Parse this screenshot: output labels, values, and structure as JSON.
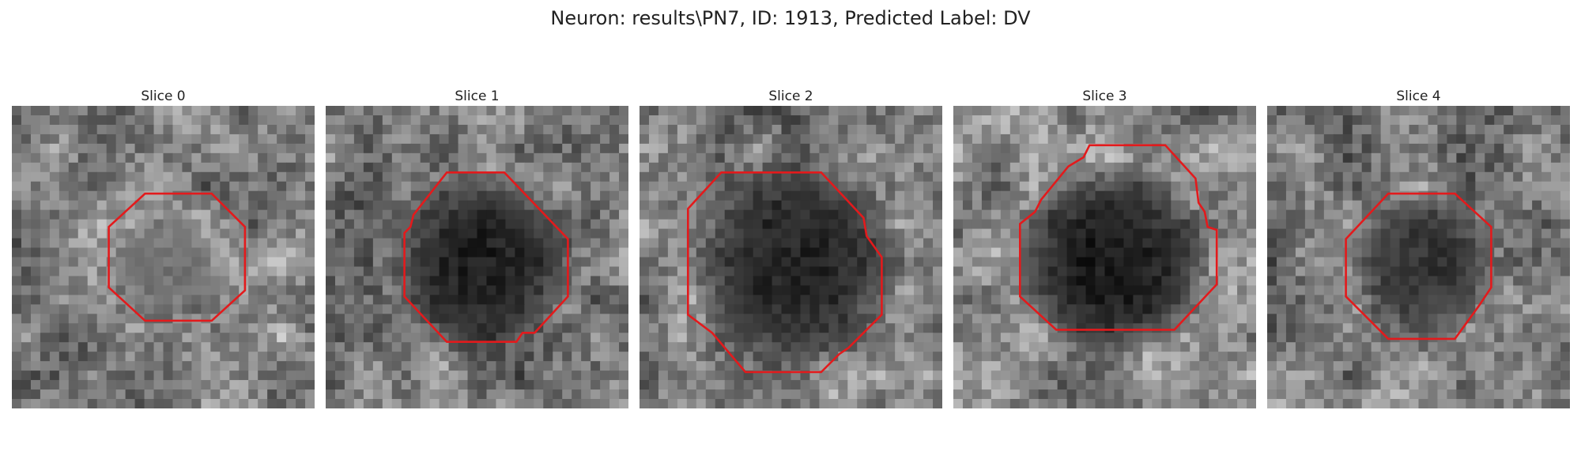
{
  "figure": {
    "title": "Neuron: results\\PN7, ID: 1913, Predicted Label: DV",
    "outline_color": "#e31a1c"
  },
  "panels": [
    {
      "title": "Slice 0",
      "brightness": 0.62,
      "center_dark": 0.45,
      "dark_radius": 0.18,
      "seed": 11,
      "outline": [
        [
          0.44,
          0.29
        ],
        [
          0.66,
          0.29
        ],
        [
          0.77,
          0.4
        ],
        [
          0.77,
          0.61
        ],
        [
          0.66,
          0.71
        ],
        [
          0.44,
          0.71
        ],
        [
          0.32,
          0.6
        ],
        [
          0.32,
          0.4
        ]
      ]
    },
    {
      "title": "Slice 1",
      "brightness": 0.58,
      "center_dark": 0.12,
      "dark_radius": 0.32,
      "seed": 23,
      "outline": [
        [
          0.4,
          0.22
        ],
        [
          0.59,
          0.22
        ],
        [
          0.8,
          0.44
        ],
        [
          0.8,
          0.63
        ],
        [
          0.69,
          0.75
        ],
        [
          0.65,
          0.75
        ],
        [
          0.63,
          0.78
        ],
        [
          0.4,
          0.78
        ],
        [
          0.26,
          0.63
        ],
        [
          0.26,
          0.42
        ],
        [
          0.28,
          0.4
        ],
        [
          0.29,
          0.36
        ]
      ]
    },
    {
      "title": "Slice 2",
      "brightness": 0.6,
      "center_dark": 0.14,
      "dark_radius": 0.36,
      "seed": 37,
      "outline": [
        [
          0.27,
          0.22
        ],
        [
          0.6,
          0.22
        ],
        [
          0.74,
          0.37
        ],
        [
          0.75,
          0.43
        ],
        [
          0.8,
          0.5
        ],
        [
          0.8,
          0.69
        ],
        [
          0.69,
          0.8
        ],
        [
          0.66,
          0.82
        ],
        [
          0.6,
          0.88
        ],
        [
          0.35,
          0.88
        ],
        [
          0.24,
          0.75
        ],
        [
          0.16,
          0.69
        ],
        [
          0.16,
          0.34
        ]
      ]
    },
    {
      "title": "Slice 3",
      "brightness": 0.64,
      "center_dark": 0.1,
      "dark_radius": 0.34,
      "seed": 41,
      "outline": [
        [
          0.45,
          0.13
        ],
        [
          0.7,
          0.13
        ],
        [
          0.8,
          0.24
        ],
        [
          0.81,
          0.32
        ],
        [
          0.83,
          0.35
        ],
        [
          0.84,
          0.4
        ],
        [
          0.87,
          0.41
        ],
        [
          0.87,
          0.59
        ],
        [
          0.73,
          0.74
        ],
        [
          0.34,
          0.74
        ],
        [
          0.22,
          0.63
        ],
        [
          0.22,
          0.39
        ],
        [
          0.27,
          0.35
        ],
        [
          0.29,
          0.31
        ],
        [
          0.38,
          0.2
        ],
        [
          0.43,
          0.17
        ]
      ]
    },
    {
      "title": "Slice 4",
      "brightness": 0.6,
      "center_dark": 0.2,
      "dark_radius": 0.24,
      "seed": 53,
      "outline": [
        [
          0.4,
          0.29
        ],
        [
          0.62,
          0.29
        ],
        [
          0.74,
          0.4
        ],
        [
          0.74,
          0.6
        ],
        [
          0.7,
          0.66
        ],
        [
          0.62,
          0.77
        ],
        [
          0.4,
          0.77
        ],
        [
          0.26,
          0.63
        ],
        [
          0.26,
          0.44
        ]
      ]
    }
  ]
}
